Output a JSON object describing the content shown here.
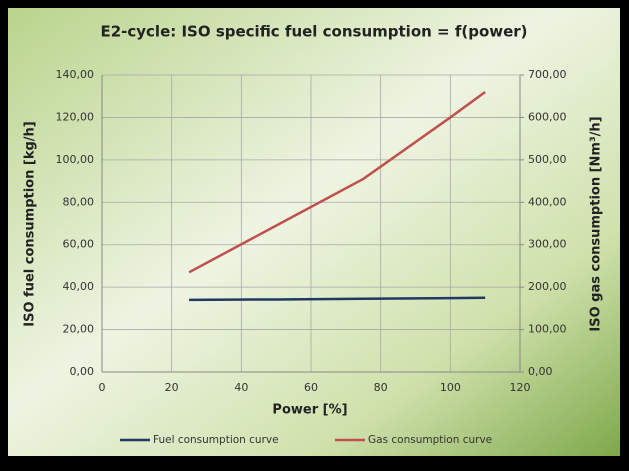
{
  "chart_data": {
    "type": "line",
    "title": "E2-cycle: ISO specific fuel consumption = f(power)",
    "x_label": "Power [%]",
    "y_label": "ISO fuel consumption [kg/h]",
    "y2_label": "ISO gas consumption [Nm³/h]",
    "x": [
      25,
      50,
      75,
      100,
      110
    ],
    "series": [
      {
        "name": "Fuel consumption curve",
        "color": "#1f3864",
        "values": [
          34.0,
          34.2,
          34.5,
          34.8,
          35.0
        ]
      },
      {
        "name": "Gas consumption curve",
        "color": "#c0504d",
        "axis": "y2",
        "values": [
          235,
          345,
          455,
          600,
          660
        ]
      }
    ],
    "xlim": [
      0,
      120
    ],
    "xticks": [
      0,
      20,
      40,
      60,
      80,
      100,
      120
    ],
    "ylim": [
      0,
      140
    ],
    "yticks": [
      {
        "value": 0,
        "label": "0,00"
      },
      {
        "value": 20,
        "label": "20,00"
      },
      {
        "value": 40,
        "label": "40,00"
      },
      {
        "value": 60,
        "label": "60,00"
      },
      {
        "value": 80,
        "label": "80,00"
      },
      {
        "value": 100,
        "label": "100,00"
      },
      {
        "value": 120,
        "label": "120,00"
      },
      {
        "value": 140,
        "label": "140,00"
      }
    ],
    "y2lim": [
      0,
      700
    ],
    "y2ticks": [
      {
        "value": 0,
        "label": "0,00"
      },
      {
        "value": 100,
        "label": "100,00"
      },
      {
        "value": 200,
        "label": "200,00"
      },
      {
        "value": 300,
        "label": "300,00"
      },
      {
        "value": 400,
        "label": "400,00"
      },
      {
        "value": 500,
        "label": "500,00"
      },
      {
        "value": 600,
        "label": "600,00"
      },
      {
        "value": 700,
        "label": "700,00"
      }
    ],
    "grid": true,
    "legend": "bottom"
  }
}
